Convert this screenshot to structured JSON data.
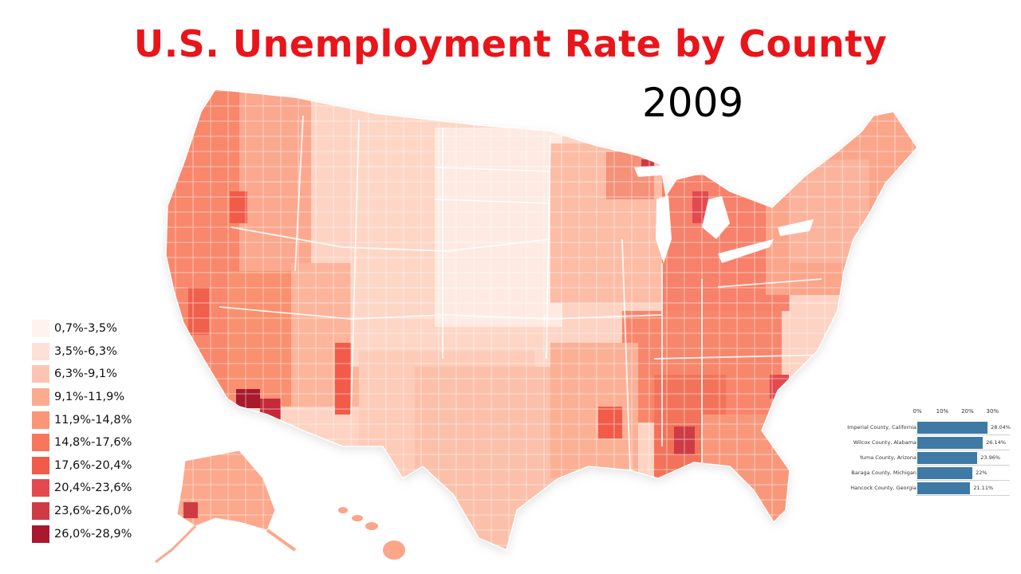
{
  "title": "U.S. Unemployment Rate by County",
  "year": "2009",
  "legend": {
    "items": [
      {
        "label": "0,7%-3,5%",
        "color": "#fff3ef"
      },
      {
        "label": "3,5%-6,3%",
        "color": "#fde0d6"
      },
      {
        "label": "6,3%-9,1%",
        "color": "#fcc5b3"
      },
      {
        "label": "9,1%-11,9%",
        "color": "#fcab91"
      },
      {
        "label": "11,9%-14,8%",
        "color": "#fb9577"
      },
      {
        "label": "14,8%-17,6%",
        "color": "#f8775c"
      },
      {
        "label": "17,6%-20,4%",
        "color": "#f25b49"
      },
      {
        "label": "20,4%-23,6%",
        "color": "#e24a4f"
      },
      {
        "label": "23,6%-26,0%",
        "color": "#cf3b45"
      },
      {
        "label": "26,0%-28,9%",
        "color": "#a8192d"
      }
    ]
  },
  "chart_data": {
    "type": "bar",
    "orientation": "horizontal",
    "categories": [
      "Imperial County, California",
      "Wilcox County, Alabama",
      "Yuma County, Arizona",
      "Baraga County, Michigan",
      "Hancock County, Georgia"
    ],
    "values": [
      28.04,
      26.14,
      23.96,
      22,
      21.11
    ],
    "value_labels": [
      "28.04%",
      "26.14%",
      "23.96%",
      "22%",
      "21.11%"
    ],
    "xticks": [
      "0%",
      "10%",
      "20%",
      "30%"
    ],
    "xlim": [
      0,
      35
    ],
    "bar_color": "#3e7aa5"
  }
}
